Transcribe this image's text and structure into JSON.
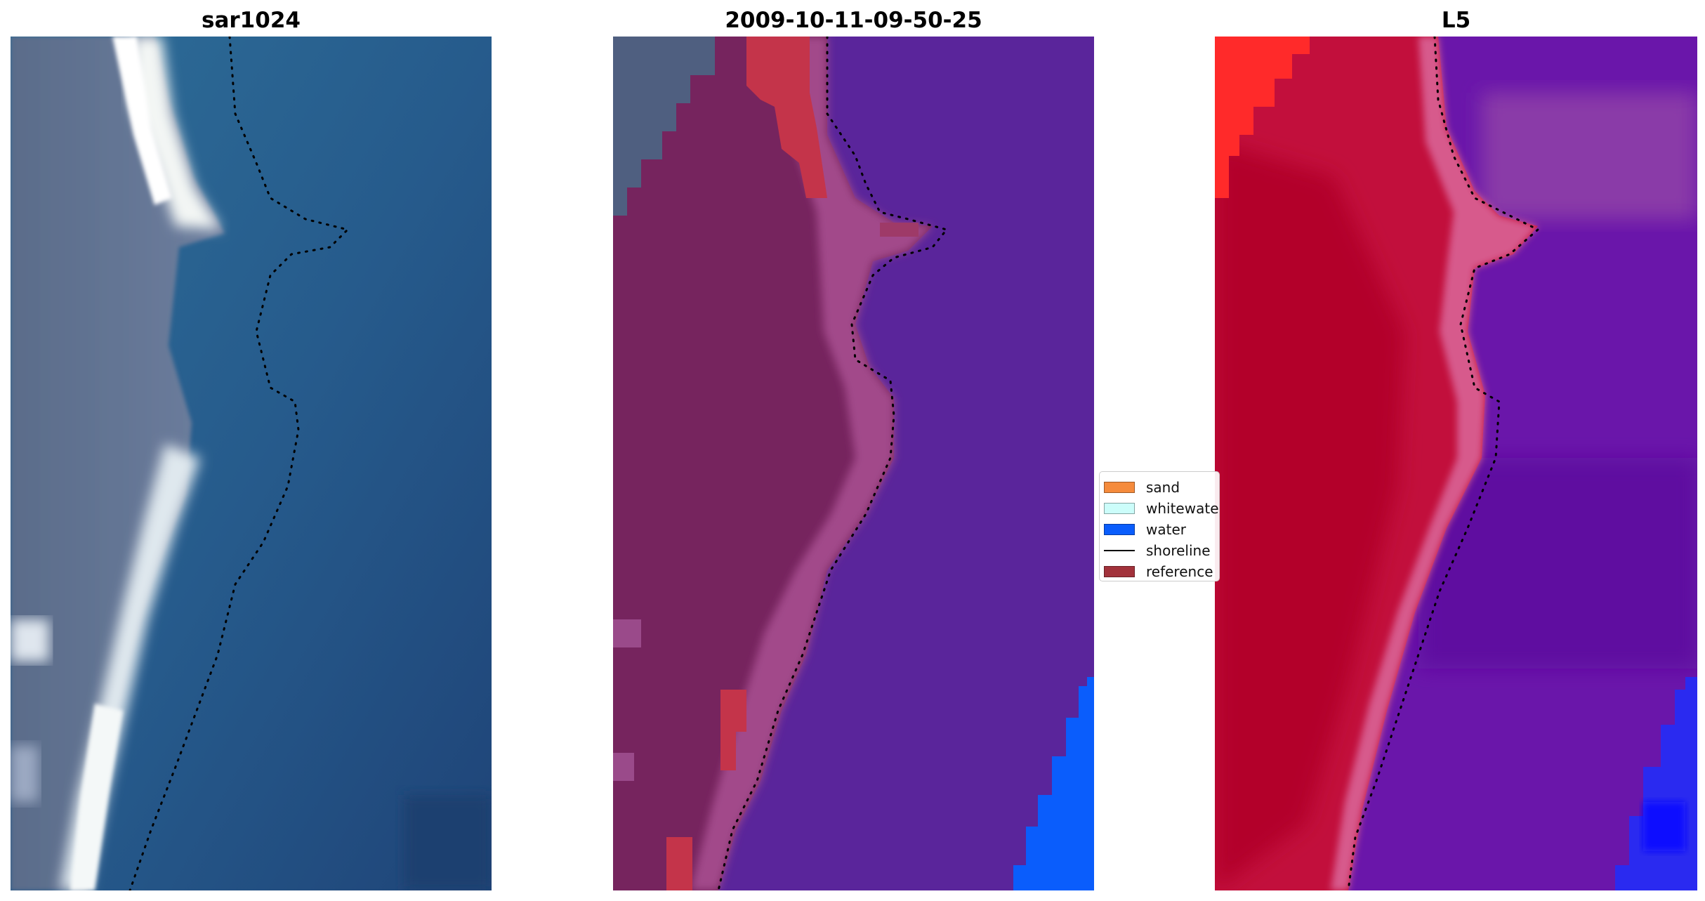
{
  "panels": [
    {
      "title": "sar1024"
    },
    {
      "title": "2009-10-11-09-50-25"
    },
    {
      "title": "L5"
    }
  ],
  "legend": {
    "items": [
      {
        "label": "sand",
        "kind": "patch",
        "color": "#f58b3c"
      },
      {
        "label": "whitewater",
        "kind": "patch",
        "color": "#ccfdfa"
      },
      {
        "label": "water",
        "kind": "patch",
        "color": "#0a5dfc"
      },
      {
        "label": "shoreline",
        "kind": "line",
        "color": "#000000"
      },
      {
        "label": "reference",
        "kind": "patch",
        "color": "#a2323b"
      }
    ]
  },
  "colors": {
    "sand_overlay": "#c4344a",
    "water_class": "#0a5dfc",
    "ocean_overlay": "#5a259b",
    "land_overlay": "#76245e",
    "heat_land": "#c20f3c",
    "heat_water": "#6a16aa",
    "shoreline": "#000000"
  }
}
